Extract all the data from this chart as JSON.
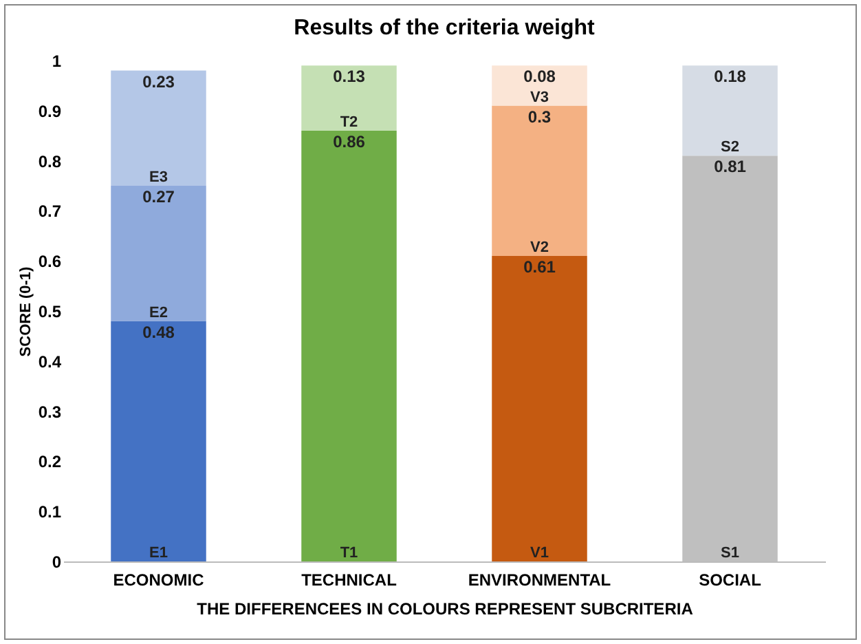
{
  "chart_data": {
    "type": "bar",
    "title": "Results of the criteria weight",
    "xlabel": "THE DIFFERENCEES IN COLOURS REPRESENT SUBCRITERIA",
    "ylabel": "SCORE (0-1)",
    "categories": [
      "ECONOMIC",
      "TECHNICAL",
      "ENVIRONMENTAL",
      "SOCIAL"
    ],
    "stacked": true,
    "data_labels": true,
    "series": [
      {
        "colors": [
          "#4472c4",
          "#70ad47",
          "#c55a11",
          "#bfbfbf"
        ],
        "values": [
          0.48,
          0.86,
          0.61,
          0.81
        ]
      },
      {
        "colors": [
          "#8faadc",
          "#c5e0b4",
          "#f4b183",
          "#d6dce5"
        ],
        "values": [
          0.27,
          0.13,
          0.3,
          0.18
        ]
      },
      {
        "colors": [
          "#b4c7e7",
          null,
          "#fbe5d6",
          null
        ],
        "values": [
          0.23,
          null,
          0.08,
          null
        ]
      }
    ],
    "ylim": [
      0,
      1
    ],
    "yticks": [
      0,
      0.1,
      0.2,
      0.3,
      0.4,
      0.5,
      0.6,
      0.7,
      0.8,
      0.9,
      1
    ],
    "annotations": [
      {
        "text": "E1",
        "x": "ECONOMIC",
        "y": 0
      },
      {
        "text": "E2",
        "x": "ECONOMIC",
        "y": 0.48
      },
      {
        "text": "E3",
        "x": "ECONOMIC",
        "y": 0.75
      },
      {
        "text": "T1",
        "x": "TECHNICAL",
        "y": 0
      },
      {
        "text": "T2",
        "x": "TECHNICAL",
        "y": 0.86
      },
      {
        "text": "V1",
        "x": "ENVIRONMENTAL",
        "y": 0
      },
      {
        "text": "V2",
        "x": "ENVIRONMENTAL",
        "y": 0.61
      },
      {
        "text": "V3",
        "x": "ENVIRONMENTAL",
        "y": 0.91
      },
      {
        "text": "S1",
        "x": "SOCIAL",
        "y": 0
      },
      {
        "text": "S2",
        "x": "SOCIAL",
        "y": 0.81
      }
    ]
  }
}
